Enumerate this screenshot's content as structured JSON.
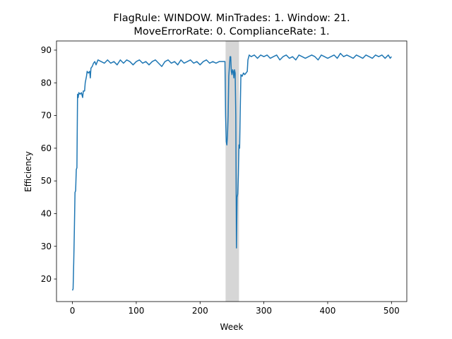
{
  "chart_data": {
    "type": "line",
    "title": [
      "FlagRule: WINDOW. MinTrades: 1. Window: 21.",
      "MoveErrorRate: 0. ComplianceRate: 1."
    ],
    "x_label": "Week",
    "y_label": "Efficiency",
    "xlim": [
      -25,
      524
    ],
    "ylim": [
      13.1,
      92.8
    ],
    "xticks": [
      0,
      100,
      200,
      300,
      400,
      500
    ],
    "yticks": [
      20,
      30,
      40,
      50,
      60,
      70,
      80,
      90
    ],
    "grid": false,
    "shaded_span": [
      240,
      261
    ],
    "shaded_color": "#d6d6d6",
    "series": [
      {
        "color": "#1f77b4",
        "x": [
          0,
          1,
          2,
          3,
          4,
          5,
          6,
          7,
          8,
          9,
          10,
          12,
          14,
          16,
          17,
          19,
          20,
          22,
          23,
          25,
          27,
          28,
          29,
          31,
          33,
          35,
          37,
          40,
          45,
          50,
          55,
          60,
          65,
          70,
          75,
          80,
          85,
          90,
          95,
          100,
          105,
          110,
          115,
          120,
          125,
          130,
          135,
          140,
          145,
          150,
          155,
          160,
          165,
          170,
          175,
          180,
          185,
          190,
          195,
          200,
          205,
          210,
          215,
          220,
          225,
          230,
          235,
          239,
          240,
          241,
          242,
          243,
          244,
          245,
          246,
          247,
          248,
          249,
          250,
          251,
          252,
          253,
          254,
          255,
          256,
          257,
          258,
          259,
          260,
          261,
          262,
          263,
          264,
          266,
          268,
          270,
          272,
          274,
          275,
          277,
          280,
          285,
          290,
          295,
          300,
          305,
          310,
          315,
          320,
          325,
          330,
          335,
          340,
          345,
          350,
          355,
          360,
          365,
          370,
          375,
          380,
          385,
          390,
          395,
          400,
          405,
          410,
          415,
          420,
          425,
          430,
          435,
          440,
          445,
          450,
          455,
          460,
          465,
          470,
          475,
          480,
          485,
          490,
          495,
          498,
          500
        ],
        "values": [
          16.5,
          17,
          25,
          35,
          46.5,
          47,
          53.5,
          54,
          76.5,
          75.5,
          77,
          76.5,
          77,
          75.5,
          77.5,
          77.5,
          80,
          82,
          83.5,
          83,
          83.5,
          81.5,
          84.5,
          85,
          86,
          86.5,
          85.5,
          87,
          86.5,
          86,
          87,
          86,
          86.5,
          85.5,
          87,
          86,
          87,
          86.5,
          85.5,
          86.5,
          87,
          86,
          86.5,
          85.5,
          86.5,
          87,
          86,
          85,
          86.5,
          87,
          86,
          86.5,
          85.5,
          87,
          86,
          86.5,
          87,
          86,
          86.5,
          85.5,
          86.5,
          87,
          86,
          86.5,
          86,
          86.5,
          86.5,
          86.5,
          70,
          62,
          61,
          64,
          70,
          82,
          85,
          88,
          88,
          83.5,
          82.5,
          84,
          83.5,
          81.5,
          84,
          83,
          70,
          29.5,
          45,
          46,
          52,
          61,
          60,
          72,
          82.5,
          82,
          83,
          82.5,
          83,
          83.5,
          87,
          88.5,
          88,
          88.5,
          87.5,
          88.5,
          88,
          88.5,
          87.5,
          88,
          88.5,
          87,
          88,
          88.5,
          87.5,
          88,
          87,
          88.5,
          88,
          87.5,
          88,
          88.5,
          88,
          87,
          88.5,
          88,
          87.5,
          88,
          88.5,
          87.5,
          89,
          88,
          88.5,
          88,
          87.5,
          88.5,
          88,
          87.5,
          88.5,
          88,
          87.5,
          88.5,
          88,
          88.5,
          87.5,
          88.5,
          87.5,
          88
        ]
      }
    ]
  }
}
